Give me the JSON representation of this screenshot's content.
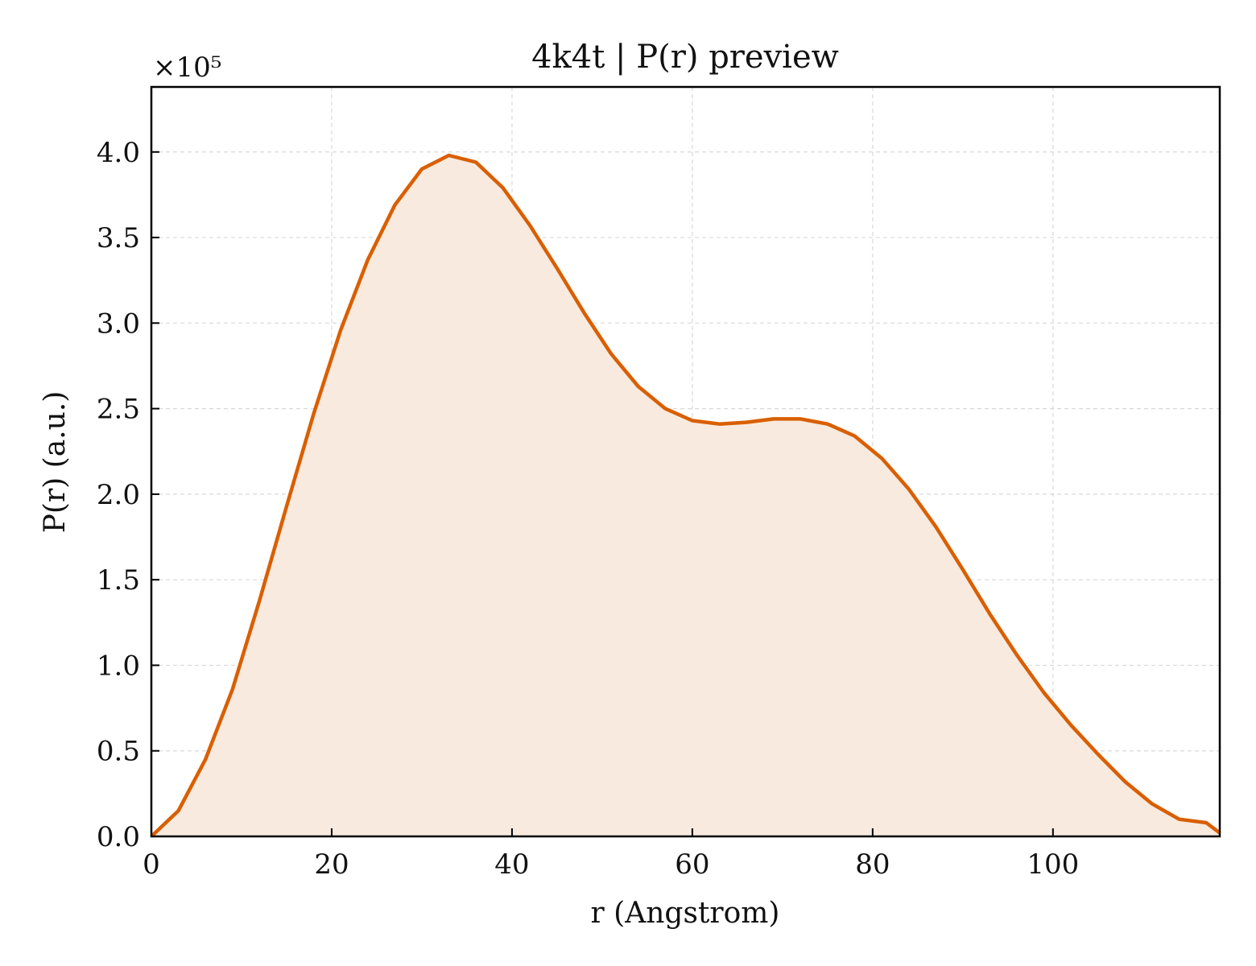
{
  "chart_data": {
    "type": "area",
    "title": "4k4t | P(r) preview",
    "xlabel": "r (Angstrom)",
    "ylabel": "P(r) (a.u.)",
    "y_multiplier_label": "×10⁵",
    "xlim": [
      0,
      118.5
    ],
    "ylim": [
      0,
      4.38
    ],
    "x_ticks": [
      0,
      20,
      40,
      60,
      80,
      100
    ],
    "x_tick_labels": [
      "0",
      "20",
      "40",
      "60",
      "80",
      "100"
    ],
    "y_ticks": [
      0,
      0.5,
      1.0,
      1.5,
      2.0,
      2.5,
      3.0,
      3.5,
      4.0
    ],
    "y_tick_labels": [
      "0.0",
      "0.5",
      "1.0",
      "1.5",
      "2.0",
      "2.5",
      "3.0",
      "3.5",
      "4.0"
    ],
    "grid": true,
    "colors": {
      "line": "#d95f02",
      "fill": "#f8eadf",
      "grid": "#d9d9d9"
    },
    "series": [
      {
        "x": [
          0,
          3,
          6,
          9,
          12,
          15,
          18,
          21,
          24,
          27,
          30,
          33,
          36,
          39,
          42,
          45,
          48,
          51,
          54,
          57,
          60,
          63,
          66,
          69,
          72,
          75,
          78,
          81,
          84,
          87,
          90,
          93,
          96,
          99,
          102,
          105,
          108,
          111,
          114,
          117,
          118.5
        ],
        "values": [
          0.0,
          0.15,
          0.45,
          0.86,
          1.38,
          1.93,
          2.47,
          2.96,
          3.37,
          3.69,
          3.9,
          3.98,
          3.94,
          3.79,
          3.57,
          3.32,
          3.06,
          2.82,
          2.63,
          2.5,
          2.43,
          2.41,
          2.42,
          2.44,
          2.44,
          2.41,
          2.34,
          2.21,
          2.03,
          1.81,
          1.56,
          1.3,
          1.06,
          0.84,
          0.65,
          0.48,
          0.32,
          0.19,
          0.1,
          0.08,
          0.02
        ]
      }
    ]
  }
}
